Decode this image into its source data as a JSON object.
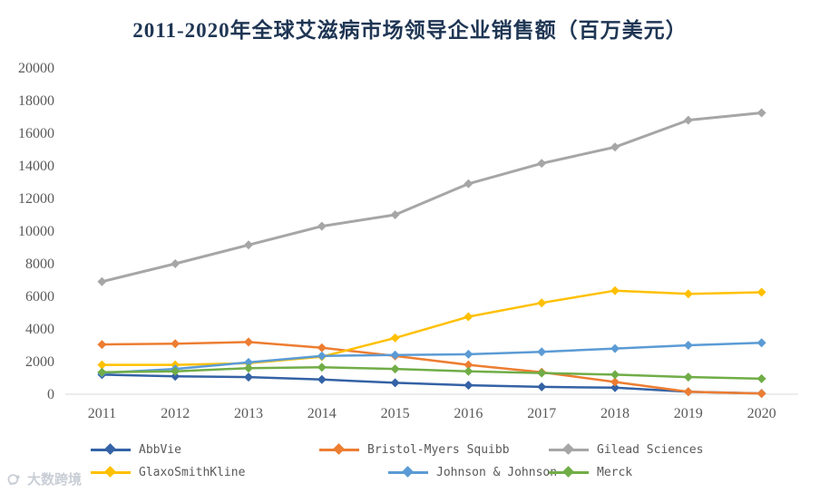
{
  "watermark": {
    "text": "大数跨境"
  },
  "chart_data": {
    "type": "line",
    "title": "2011-2020年全球艾滋病市场领导企业销售额（百万美元）",
    "title_color": "#1F3654",
    "categories": [
      "2011",
      "2012",
      "2013",
      "2014",
      "2015",
      "2016",
      "2017",
      "2018",
      "2019",
      "2020"
    ],
    "series": [
      {
        "name": "AbbVie",
        "color": "#3462A5",
        "values": [
          1200,
          1100,
          1050,
          900,
          700,
          550,
          450,
          400,
          150,
          50
        ]
      },
      {
        "name": "Bristol-Myers Squibb",
        "color": "#ED7D31",
        "values": [
          3050,
          3100,
          3200,
          2850,
          2350,
          1800,
          1350,
          750,
          150,
          40
        ]
      },
      {
        "name": "Gilead Sciences",
        "color": "#A6A6A6",
        "values": [
          6900,
          8000,
          9150,
          10300,
          11000,
          12900,
          14150,
          15150,
          16800,
          17250
        ]
      },
      {
        "name": "GlaxoSmithKline",
        "color": "#FFC000",
        "values": [
          1800,
          1800,
          1900,
          2300,
          3450,
          4750,
          5600,
          6350,
          6150,
          6250
        ]
      },
      {
        "name": "Johnson & Johnson",
        "color": "#5B9BD5",
        "values": [
          1300,
          1550,
          1950,
          2350,
          2400,
          2450,
          2600,
          2800,
          3000,
          3150
        ]
      },
      {
        "name": "Merck",
        "color": "#70AD47",
        "values": [
          1350,
          1400,
          1600,
          1650,
          1550,
          1400,
          1300,
          1200,
          1050,
          950
        ]
      }
    ],
    "xlabel": "",
    "ylabel": "",
    "ylim": [
      0,
      20000
    ],
    "ytick_step": 2000,
    "grid": false,
    "legend_position": "bottom",
    "axis_text_color": "#595959"
  }
}
